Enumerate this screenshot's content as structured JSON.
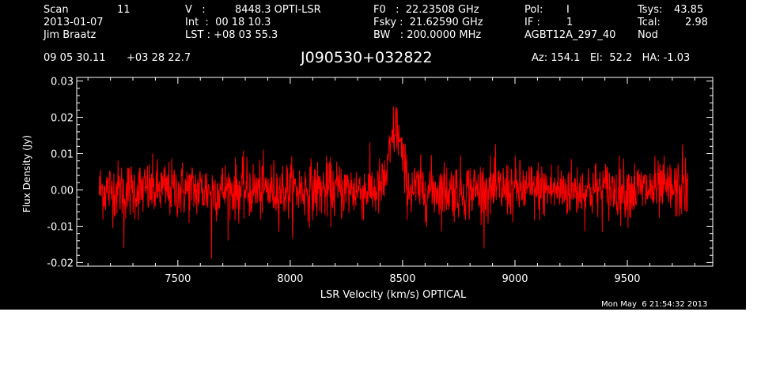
{
  "header": {
    "scan_label": "Scan",
    "scan_number": "11",
    "date": "2013-01-07",
    "observer": "Jim Braatz",
    "coord_ra": "09 05 30.11",
    "coord_dec": "+03 28 22.7",
    "v_label": "V   :",
    "v_value": "8448.3 OPTI-LSR",
    "int_line": "Int  :  00 18 10.3",
    "lst_line": "LST : +08 03 55.3",
    "f0_line": "F0   :  22.23508 GHz",
    "fsky_line": "Fsky :  21.62590 GHz",
    "bw_line": "BW   : 200.0000 MHz",
    "pol_label": "Pol:",
    "pol_value": "I",
    "if_label": "IF :",
    "if_value": "1",
    "project": "AGBT12A_297_40",
    "tsys_label": "Tsys:",
    "tsys_value": "43.85",
    "tcal_label": "Tcal:",
    "tcal_value": "2.98",
    "proc": "Nod",
    "source": "J090530+032822",
    "az_el_ha": "Az: 154.1   El:  52.2   HA: -1.03",
    "timestamp": "Mon May  6 21:54:32 2013"
  },
  "colors": {
    "background": "#000000",
    "foreground": "#ffffff",
    "spectrum": "#ff0000"
  },
  "chart_data": {
    "type": "line",
    "xlabel": "LSR Velocity (km/s) OPTICAL",
    "ylabel": "Flux Density (Jy)",
    "xlim": [
      7050,
      9880
    ],
    "ylim": [
      -0.021,
      0.031
    ],
    "x_ticks": [
      7500,
      8000,
      8500,
      9000,
      9500
    ],
    "x_tick_labels": [
      "7500",
      "8000",
      "8500",
      "9000",
      "9500"
    ],
    "y_ticks": [
      -0.02,
      -0.01,
      0.0,
      0.01,
      0.02,
      0.03
    ],
    "y_tick_labels": [
      "-0.02",
      "-0.01",
      "0.00",
      "0.01",
      "0.02",
      "0.03"
    ],
    "grid": false,
    "series": [
      {
        "x_range": [
          7150,
          9770
        ],
        "baseline": 0.0,
        "noise_rms": 0.004,
        "features": [
          {
            "kind": "emission",
            "center": 8470,
            "peak": 0.023,
            "width": 25
          },
          {
            "kind": "spike",
            "x": 7650,
            "y": -0.019
          },
          {
            "kind": "spike",
            "x": 7260,
            "y": -0.016
          },
          {
            "kind": "spike",
            "x": 9745,
            "y": 0.0125
          }
        ]
      }
    ]
  }
}
